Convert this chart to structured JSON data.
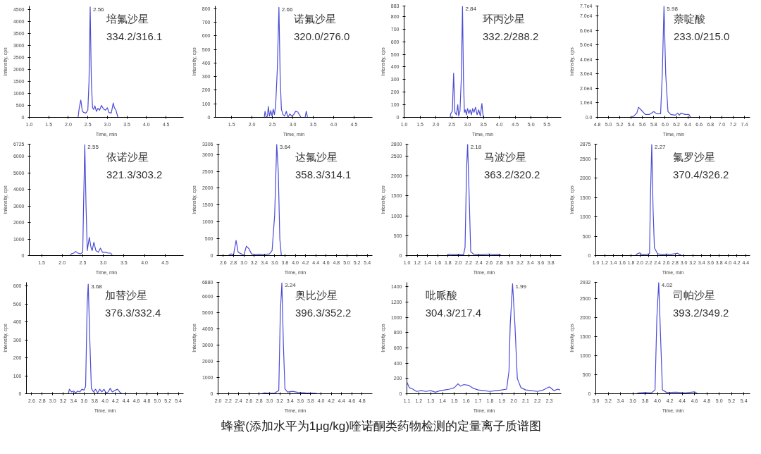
{
  "chart_data": [
    {
      "type": "line",
      "xlabel": "Time, min",
      "ylabel": "Intensity, cps",
      "annotations": [
        "培氟沙星",
        "334.2/316.1",
        {
          "text": "2.56",
          "x": 2.56,
          "y": 4600
        }
      ],
      "xlim": [
        1.0,
        4.95
      ],
      "xticks": [
        {
          "value": 1,
          "label": "1.0"
        },
        1.5,
        {
          "value": 2,
          "label": "2.0"
        },
        2.5,
        {
          "value": 3,
          "label": "3.0"
        },
        3.5,
        {
          "value": 4,
          "label": "4.0"
        },
        4.5
      ],
      "ylim": [
        0,
        4640
      ],
      "yticks": [
        0,
        500,
        1000,
        1500,
        2000,
        2500,
        3000,
        3500,
        4000,
        4500
      ],
      "series": [
        {
          "color": "#4b4bd6",
          "x": [
            2.25,
            2.28,
            2.32,
            2.36,
            2.4,
            2.45,
            2.5,
            2.53,
            2.56,
            2.59,
            2.62,
            2.65,
            2.68,
            2.72,
            2.76,
            2.8,
            2.85,
            2.9,
            2.95,
            3.0,
            3.04,
            3.1,
            3.15,
            3.18,
            3.22,
            3.27
          ],
          "values": [
            0,
            400,
            720,
            250,
            200,
            180,
            300,
            1500,
            4600,
            1500,
            400,
            330,
            480,
            250,
            380,
            300,
            500,
            350,
            300,
            400,
            200,
            180,
            600,
            400,
            300,
            0
          ]
        }
      ]
    },
    {
      "type": "line",
      "xlabel": "Time, min",
      "ylabel": "Intensity, cps",
      "annotations": [
        "诺氟沙星",
        "320.0/276.0",
        {
          "text": "2.66",
          "x": 2.66,
          "y": 810
        }
      ],
      "xlim": [
        1.1,
        4.95
      ],
      "xticks": [
        1.5,
        {
          "value": 2,
          "label": "2.0"
        },
        2.5,
        {
          "value": 3,
          "label": "3.0"
        },
        3.5,
        {
          "value": 4,
          "label": "4.0"
        },
        4.5
      ],
      "ylim": [
        0,
        820
      ],
      "yticks": [
        0,
        100,
        200,
        300,
        400,
        500,
        600,
        700,
        800
      ],
      "series": [
        {
          "color": "#4b4bd6",
          "x": [
            2.3,
            2.32,
            2.35,
            2.38,
            2.4,
            2.43,
            2.46,
            2.49,
            2.52,
            2.55,
            2.58,
            2.62,
            2.66,
            2.69,
            2.72,
            2.76,
            2.8,
            2.84,
            2.88,
            2.93,
            2.97,
            3.02,
            3.07,
            3.12,
            3.16,
            3.2,
            3.3,
            3.33,
            3.36
          ],
          "values": [
            0,
            45,
            0,
            10,
            80,
            10,
            50,
            10,
            60,
            20,
            90,
            350,
            810,
            300,
            60,
            20,
            10,
            45,
            0,
            25,
            10,
            20,
            45,
            40,
            20,
            0,
            0,
            45,
            0
          ]
        }
      ]
    },
    {
      "type": "line",
      "xlabel": "Time, min",
      "ylabel": "Intensity, cps",
      "annotations": [
        "环丙沙星",
        "332.2/288.2",
        {
          "text": "2.84",
          "x": 2.84,
          "y": 880
        }
      ],
      "xlim": [
        1.0,
        5.95
      ],
      "xticks": [
        {
          "value": 1,
          "label": "1.0"
        },
        1.5,
        {
          "value": 2,
          "label": "2.0"
        },
        2.5,
        {
          "value": 3,
          "label": "3.0"
        },
        3.5,
        {
          "value": 4,
          "label": "4.0"
        },
        4.5,
        {
          "value": 5,
          "label": "5.0"
        },
        5.5
      ],
      "ylim": [
        0,
        883
      ],
      "yticks": [
        0,
        100,
        200,
        300,
        400,
        500,
        600,
        700,
        800,
        883
      ],
      "series": [
        {
          "color": "#4b4bd6",
          "x": [
            2.45,
            2.47,
            2.52,
            2.56,
            2.6,
            2.65,
            2.69,
            2.72,
            2.76,
            2.8,
            2.84,
            2.87,
            2.9,
            2.93,
            2.96,
            3.0,
            3.04,
            3.08,
            3.12,
            3.16,
            3.2,
            3.25,
            3.3,
            3.35,
            3.4,
            3.45,
            3.48,
            3.5
          ],
          "values": [
            0,
            30,
            50,
            350,
            40,
            20,
            100,
            10,
            50,
            300,
            880,
            300,
            40,
            60,
            20,
            70,
            30,
            60,
            20,
            70,
            40,
            80,
            20,
            60,
            10,
            110,
            30,
            0
          ]
        }
      ]
    },
    {
      "type": "line",
      "xlabel": "Time, min",
      "ylabel": "Intensity, cps",
      "annotations": [
        "萘啶酸",
        "233.0/215.0",
        {
          "text": "5.98",
          "x": 5.98,
          "y": 77000
        }
      ],
      "xlim": [
        4.8,
        7.5
      ],
      "xticks": [
        4.8,
        {
          "value": 5,
          "label": "5.0"
        },
        5.2,
        5.4,
        5.6,
        5.8,
        {
          "value": 6,
          "label": "6.0"
        },
        6.2,
        6.4,
        6.6,
        6.8,
        {
          "value": 7,
          "label": "7.0"
        },
        7.2,
        7.4
      ],
      "ylim": [
        0,
        77000
      ],
      "yticks": [
        {
          "value": 0,
          "label": "0.0"
        },
        {
          "value": 10000,
          "label": "1.0e4"
        },
        {
          "value": 20000,
          "label": "2.0e4"
        },
        {
          "value": 30000,
          "label": "3.0e4"
        },
        {
          "value": 40000,
          "label": "4.0e4"
        },
        {
          "value": 50000,
          "label": "5.0e4"
        },
        {
          "value": 60000,
          "label": "6.0e4"
        },
        {
          "value": 70000,
          "label": "7.0e4"
        },
        {
          "value": 77000,
          "label": "7.7e4"
        }
      ],
      "series": [
        {
          "color": "#4b4bd6",
          "x": [
            5.4,
            5.45,
            5.5,
            5.53,
            5.58,
            5.65,
            5.72,
            5.8,
            5.85,
            5.92,
            5.95,
            5.98,
            6.01,
            6.05,
            6.1,
            6.18,
            6.22,
            6.25,
            6.28,
            6.35,
            6.42,
            6.45
          ],
          "values": [
            0,
            1000,
            3000,
            7000,
            5000,
            2000,
            2000,
            4000,
            2500,
            2500,
            30000,
            77000,
            30000,
            4000,
            2000,
            1500,
            3000,
            1500,
            3000,
            2000,
            2000,
            0
          ]
        }
      ]
    },
    {
      "type": "line",
      "xlabel": "Time, min",
      "ylabel": "Intensity, cps",
      "annotations": [
        "依诺沙星",
        "321.3/303.2",
        {
          "text": "2.55",
          "x": 2.55,
          "y": 6700
        }
      ],
      "xlim": [
        1.2,
        4.95
      ],
      "xticks": [
        1.5,
        {
          "value": 2,
          "label": "2.0"
        },
        2.5,
        {
          "value": 3,
          "label": "3.0"
        },
        3.5,
        {
          "value": 4,
          "label": "4.0"
        },
        4.5
      ],
      "ylim": [
        0,
        6725
      ],
      "yticks": [
        0,
        1000,
        2000,
        3000,
        4000,
        5000,
        6000,
        6725
      ],
      "series": [
        {
          "color": "#4b4bd6",
          "x": [
            2.2,
            2.22,
            2.28,
            2.33,
            2.38,
            2.45,
            2.5,
            2.52,
            2.55,
            2.58,
            2.61,
            2.66,
            2.7,
            2.73,
            2.77,
            2.82,
            2.88,
            2.93,
            2.98,
            3.05,
            3.12,
            3.18,
            3.22
          ],
          "values": [
            0,
            100,
            150,
            250,
            150,
            100,
            200,
            3000,
            6700,
            3000,
            300,
            1100,
            500,
            300,
            800,
            300,
            200,
            450,
            200,
            200,
            150,
            150,
            0
          ]
        }
      ]
    },
    {
      "type": "line",
      "xlabel": "Time, min",
      "ylabel": "Intensity, cps",
      "annotations": [
        "达氟沙星",
        "358.3/314.1",
        {
          "text": "3.64",
          "x": 3.64,
          "y": 3300
        }
      ],
      "xlim": [
        2.5,
        5.5
      ],
      "xticks": [
        2.6,
        2.8,
        {
          "value": 3,
          "label": "3.0"
        },
        3.2,
        3.4,
        3.6,
        3.8,
        {
          "value": 4,
          "label": "4.0"
        },
        4.2,
        4.4,
        4.6,
        4.8,
        {
          "value": 5,
          "label": "5.0"
        },
        5.2,
        5.4
      ],
      "ylim": [
        0,
        3306
      ],
      "yticks": [
        0,
        500,
        1000,
        1500,
        2000,
        2500,
        3000,
        3306
      ],
      "series": [
        {
          "color": "#4b4bd6",
          "x": [
            2.7,
            2.75,
            2.8,
            2.85,
            2.89,
            2.95,
            3.0,
            3.05,
            3.1,
            3.15,
            3.2,
            3.3,
            3.4,
            3.5,
            3.55,
            3.6,
            3.64,
            3.67,
            3.7,
            3.73
          ],
          "values": [
            0,
            50,
            20,
            450,
            100,
            50,
            0,
            280,
            200,
            50,
            30,
            40,
            30,
            50,
            150,
            1200,
            3300,
            2500,
            500,
            0
          ]
        }
      ]
    },
    {
      "type": "line",
      "xlabel": "Time, min",
      "ylabel": "Intensity, cps",
      "annotations": [
        "马波沙星",
        "363.2/320.2",
        {
          "text": "2.18",
          "x": 2.18,
          "y": 2800
        }
      ],
      "xlim": [
        1.0,
        4.0
      ],
      "xticks": [
        {
          "value": 1,
          "label": "1.0"
        },
        1.2,
        1.4,
        1.6,
        1.8,
        {
          "value": 2,
          "label": "2.0"
        },
        2.2,
        2.4,
        2.6,
        2.8,
        {
          "value": 3,
          "label": "3.0"
        },
        3.2,
        3.4,
        3.6,
        3.8
      ],
      "ylim": [
        0,
        2800
      ],
      "yticks": [
        0,
        500,
        1000,
        1500,
        2000,
        2500,
        2800
      ],
      "series": [
        {
          "color": "#4b4bd6",
          "x": [
            1.8,
            1.82,
            1.9,
            2.0,
            2.1,
            2.13,
            2.16,
            2.18,
            2.21,
            2.24,
            2.3,
            2.4,
            2.5,
            2.6,
            2.7,
            2.8,
            2.83
          ],
          "values": [
            0,
            40,
            20,
            30,
            20,
            200,
            2200,
            2800,
            1500,
            100,
            30,
            20,
            30,
            40,
            20,
            30,
            0
          ]
        }
      ]
    },
    {
      "type": "line",
      "xlabel": "Time, min",
      "ylabel": "Intensity, cps",
      "annotations": [
        "氟罗沙星",
        "370.4/326.2",
        {
          "text": "2.27",
          "x": 2.27,
          "y": 2870
        }
      ],
      "xlim": [
        1.0,
        4.5
      ],
      "xticks": [
        {
          "value": 1,
          "label": "1.0"
        },
        1.2,
        1.4,
        1.6,
        1.8,
        {
          "value": 2,
          "label": "2.0"
        },
        2.2,
        2.4,
        2.6,
        2.8,
        {
          "value": 3,
          "label": "3.0"
        },
        3.2,
        3.4,
        3.6,
        3.8,
        {
          "value": 4,
          "label": "4.0"
        },
        4.2,
        4.4
      ],
      "ylim": [
        0,
        2875
      ],
      "yticks": [
        0,
        500,
        1000,
        1500,
        2000,
        2500,
        2875
      ],
      "series": [
        {
          "color": "#4b4bd6",
          "x": [
            1.9,
            1.95,
            2.0,
            2.05,
            2.15,
            2.22,
            2.24,
            2.27,
            2.3,
            2.33,
            2.4,
            2.5,
            2.6,
            2.7,
            2.8,
            2.85,
            2.9,
            2.95
          ],
          "values": [
            0,
            50,
            70,
            20,
            30,
            50,
            1500,
            2870,
            1200,
            200,
            50,
            20,
            40,
            30,
            50,
            60,
            30,
            0
          ]
        }
      ]
    },
    {
      "type": "line",
      "xlabel": "Time, min",
      "ylabel": "Intensity, cps",
      "annotations": [
        "加替沙星",
        "376.3/332.4",
        {
          "text": "3.68",
          "x": 3.68,
          "y": 610
        }
      ],
      "xlim": [
        2.5,
        5.5
      ],
      "xticks": [
        2.6,
        2.8,
        {
          "value": 3,
          "label": "3.0"
        },
        3.2,
        3.4,
        3.6,
        3.8,
        {
          "value": 4,
          "label": "4.0"
        },
        4.2,
        4.4,
        4.6,
        4.8,
        {
          "value": 5,
          "label": "5.0"
        },
        5.2,
        5.4
      ],
      "ylim": [
        0,
        620
      ],
      "yticks": [
        0,
        100,
        200,
        300,
        400,
        500,
        600
      ],
      "series": [
        {
          "color": "#4b4bd6",
          "x": [
            3.3,
            3.32,
            3.36,
            3.4,
            3.44,
            3.48,
            3.52,
            3.56,
            3.6,
            3.63,
            3.66,
            3.68,
            3.71,
            3.74,
            3.78,
            3.82,
            3.86,
            3.9,
            3.94,
            3.98,
            4.02,
            4.06,
            4.1,
            4.14,
            4.2,
            4.24,
            4.28,
            4.32
          ],
          "values": [
            0,
            25,
            10,
            15,
            5,
            15,
            10,
            25,
            20,
            40,
            500,
            610,
            300,
            30,
            10,
            25,
            5,
            25,
            10,
            25,
            5,
            10,
            30,
            10,
            20,
            25,
            10,
            0
          ]
        }
      ]
    },
    {
      "type": "line",
      "xlabel": "Time, min",
      "ylabel": "Intensity, cps",
      "annotations": [
        "奥比沙星",
        "396.3/352.2",
        {
          "text": "3.24",
          "x": 3.24,
          "y": 6850
        }
      ],
      "xlim": [
        2.0,
        5.0
      ],
      "xticks": [
        {
          "value": 2,
          "label": "2.0"
        },
        2.2,
        2.4,
        2.6,
        2.8,
        {
          "value": 3,
          "label": "3.0"
        },
        3.2,
        3.4,
        3.6,
        3.8,
        {
          "value": 4,
          "label": "4.0"
        },
        4.2,
        4.4,
        4.6,
        4.8
      ],
      "ylim": [
        0,
        6880
      ],
      "yticks": [
        0,
        1000,
        2000,
        3000,
        4000,
        5000,
        6000,
        6880
      ],
      "series": [
        {
          "color": "#4b4bd6",
          "x": [
            2.85,
            2.9,
            3.0,
            3.1,
            3.18,
            3.21,
            3.24,
            3.27,
            3.3,
            3.35,
            3.45,
            3.55,
            3.7,
            3.8,
            3.9,
            3.92
          ],
          "values": [
            0,
            50,
            30,
            40,
            200,
            5000,
            6850,
            3000,
            300,
            100,
            150,
            80,
            50,
            40,
            30,
            0
          ]
        }
      ]
    },
    {
      "type": "line",
      "xlabel": "Time, min",
      "ylabel": "Intensity, cps",
      "annotations": [
        "吡哌酸",
        "304.3/217.4",
        {
          "text": "1.99",
          "x": 1.99,
          "y": 1440
        }
      ],
      "xlim": [
        1.1,
        2.4
      ],
      "xticks": [
        1.1,
        1.2,
        1.3,
        1.4,
        1.5,
        1.6,
        1.7,
        1.8,
        1.9,
        {
          "value": 2,
          "label": "2.0"
        },
        2.1,
        2.2,
        2.3
      ],
      "ylim": [
        0,
        1460
      ],
      "yticks": [
        0,
        200,
        400,
        600,
        800,
        1000,
        1200,
        1400
      ],
      "series": [
        {
          "color": "#4b4bd6",
          "x": [
            1.1,
            1.12,
            1.15,
            1.18,
            1.22,
            1.26,
            1.3,
            1.34,
            1.38,
            1.42,
            1.46,
            1.5,
            1.53,
            1.55,
            1.58,
            1.62,
            1.66,
            1.7,
            1.75,
            1.8,
            1.85,
            1.9,
            1.94,
            1.96,
            1.97,
            1.99,
            2.01,
            2.03,
            2.06,
            2.1,
            2.15,
            2.2,
            2.25,
            2.3,
            2.34,
            2.37,
            2.39
          ],
          "values": [
            150,
            80,
            60,
            30,
            40,
            30,
            40,
            20,
            40,
            50,
            60,
            80,
            130,
            100,
            120,
            110,
            70,
            50,
            40,
            30,
            40,
            50,
            60,
            300,
            900,
            1440,
            900,
            200,
            80,
            50,
            40,
            30,
            50,
            90,
            40,
            60,
            50
          ]
        }
      ]
    },
    {
      "type": "line",
      "xlabel": "Time, min",
      "ylabel": "Intensity, cps",
      "annotations": [
        "司帕沙星",
        "393.2/349.2",
        {
          "text": "4.02",
          "x": 4.02,
          "y": 2930
        }
      ],
      "xlim": [
        3.0,
        5.5
      ],
      "xticks": [
        {
          "value": 3,
          "label": "3.0"
        },
        3.2,
        3.4,
        3.6,
        3.8,
        {
          "value": 4,
          "label": "4.0"
        },
        4.2,
        4.4,
        4.6,
        4.8,
        {
          "value": 5,
          "label": "5.0"
        },
        5.2,
        5.4
      ],
      "ylim": [
        0,
        2932
      ],
      "yticks": [
        0,
        500,
        1000,
        1500,
        2000,
        2500,
        2932
      ],
      "series": [
        {
          "color": "#4b4bd6",
          "x": [
            3.65,
            3.7,
            3.8,
            3.9,
            3.96,
            3.99,
            4.02,
            4.05,
            4.08,
            4.15,
            4.3,
            4.45,
            4.6,
            4.65
          ],
          "values": [
            0,
            20,
            30,
            20,
            100,
            2000,
            2930,
            1500,
            100,
            30,
            40,
            20,
            50,
            0
          ]
        }
      ]
    },
    {
      "type": "other",
      "title": "蜂蜜(添加水平为1μg/kg)喹诺酮类药物检测的定量离子质谱图"
    }
  ]
}
